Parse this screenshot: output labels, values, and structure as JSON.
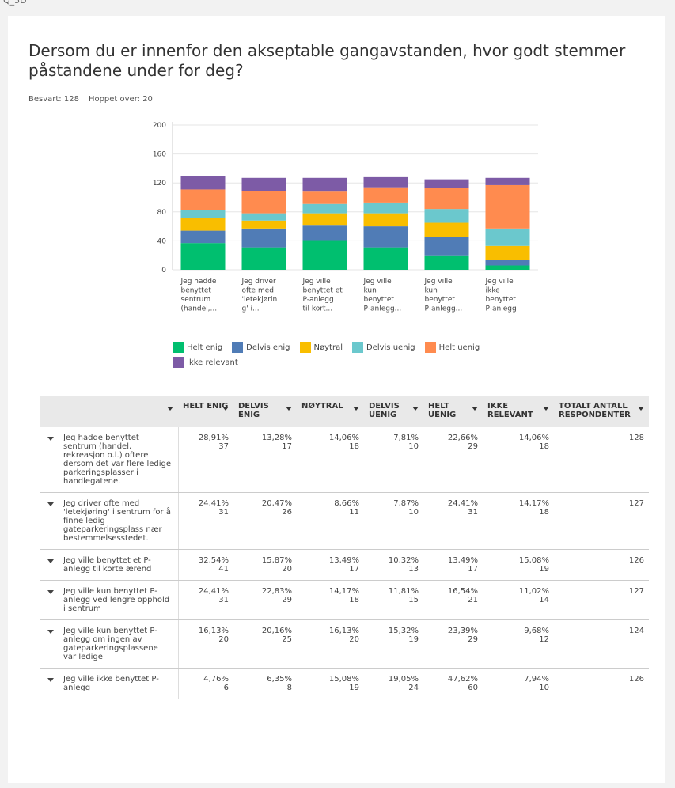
{
  "header": {
    "question_id": "Q_5D",
    "title": "Dersom du er innenfor den akseptable gangavstanden, hvor godt stemmer påstandene under for deg?",
    "answered": "Besvart: 128",
    "skipped": "Hoppet over: 20"
  },
  "chart_data": {
    "type": "bar",
    "stacked": true,
    "categories": [
      [
        "Jeg hadde",
        "benyttet",
        "sentrum",
        "(handel,..."
      ],
      [
        "Jeg driver",
        "ofte med",
        "'letekjørin",
        "g' i..."
      ],
      [
        "Jeg ville",
        "benyttet et",
        "P-anlegg",
        "til kort..."
      ],
      [
        "Jeg ville",
        "kun",
        "benyttet",
        "P-anlegg..."
      ],
      [
        "Jeg ville",
        "kun",
        "benyttet",
        "P-anlegg..."
      ],
      [
        "Jeg ville",
        "ikke",
        "benyttet",
        "P-anlegg"
      ]
    ],
    "series": [
      {
        "name": "Helt enig",
        "color": "#00bf6f",
        "values": [
          37,
          31,
          41,
          31,
          20,
          6
        ]
      },
      {
        "name": "Delvis enig",
        "color": "#507cb6",
        "values": [
          17,
          26,
          20,
          29,
          25,
          8
        ]
      },
      {
        "name": "Nøytral",
        "color": "#f9be00",
        "values": [
          18,
          11,
          17,
          18,
          20,
          19
        ]
      },
      {
        "name": "Delvis uenig",
        "color": "#6bc8cd",
        "values": [
          10,
          10,
          13,
          15,
          19,
          24
        ]
      },
      {
        "name": "Helt uenig",
        "color": "#ff8b4f",
        "values": [
          29,
          31,
          17,
          21,
          29,
          60
        ]
      },
      {
        "name": "Ikke relevant",
        "color": "#7d5ba6",
        "values": [
          18,
          18,
          19,
          14,
          12,
          10
        ]
      }
    ],
    "ylim": [
      0,
      200
    ],
    "yticks": [
      0,
      40,
      80,
      120,
      160,
      200
    ],
    "grid": true
  },
  "table": {
    "columns": [
      "HELT ENIG",
      "DELVIS ENIG",
      "NØYTRAL",
      "DELVIS UENIG",
      "HELT UENIG",
      "IKKE RELEVANT",
      "TOTALT ANTALL RESPONDENTER"
    ],
    "rows": [
      {
        "label": "Jeg hadde benyttet sentrum (handel, rekreasjon o.l.) oftere dersom det var flere ledige parkeringsplasser i handlegatene.",
        "cells": [
          "28,91%",
          "13,28%",
          "14,06%",
          "7,81%",
          "22,66%",
          "14,06%"
        ],
        "total": 128
      },
      {
        "label": "Jeg driver ofte med 'letekjøring' i sentrum for å finne ledig gateparkeringsplass nær bestemmelsesstedet.",
        "cells": [
          "24,41%",
          "20,47%",
          "8,66%",
          "7,87%",
          "24,41%",
          "14,17%"
        ],
        "total": 127
      },
      {
        "label": "Jeg ville benyttet et P-anlegg til korte ærend",
        "cells": [
          "32,54%",
          "15,87%",
          "13,49%",
          "10,32%",
          "13,49%",
          "15,08%"
        ],
        "total": 126
      },
      {
        "label": "Jeg ville kun benyttet P-anlegg ved lengre opphold i sentrum",
        "cells": [
          "24,41%",
          "22,83%",
          "14,17%",
          "11,81%",
          "16,54%",
          "11,02%"
        ],
        "total": 127
      },
      {
        "label": "Jeg ville kun benyttet P-anlegg om ingen av gateparkeringsplassene var ledige",
        "cells": [
          "16,13%",
          "20,16%",
          "16,13%",
          "15,32%",
          "23,39%",
          "9,68%"
        ],
        "total": 124
      },
      {
        "label": "Jeg ville ikke benyttet P-anlegg",
        "cells": [
          "4,76%",
          "6,35%",
          "15,08%",
          "19,05%",
          "47,62%",
          "7,94%"
        ],
        "total": 126
      }
    ]
  }
}
